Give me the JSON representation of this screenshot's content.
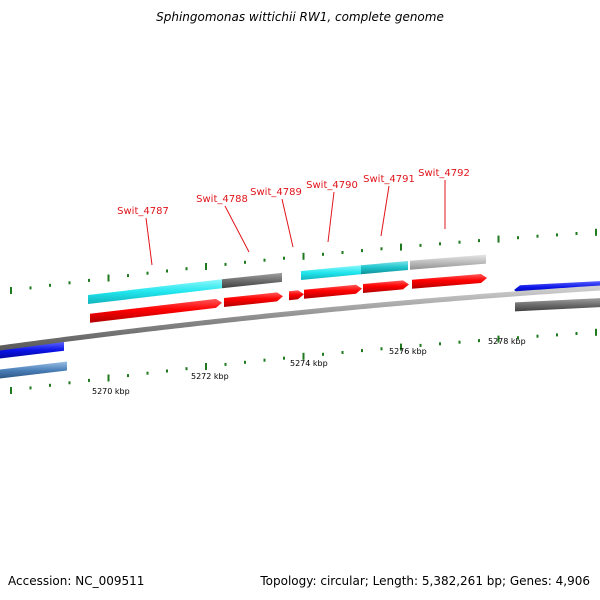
{
  "title": "Sphingomonas wittichii RW1, complete genome",
  "footer": {
    "accession": "Accession: NC_009511",
    "summary": "Topology: circular; Length: 5,382,261 bp; Genes: 4,906"
  },
  "gene_labels": [
    "Swit_4787",
    "Swit_4788",
    "Swit_4789",
    "Swit_4790",
    "Swit_4791",
    "Swit_4792"
  ],
  "kbp_labels": [
    "5270 kbp",
    "5272 kbp",
    "5274 kbp",
    "5276 kbp",
    "5278 kbp"
  ],
  "colors": {
    "cds": "#ff0000",
    "cyan": "#22e6ee",
    "teal": "#1fc4cc",
    "gray_dark": "#6e6e6e",
    "gray_light": "#bdbdbd",
    "blue": "#0a12e6",
    "steel_blue": "#4a7fb8",
    "backbone": "#8c8c8c",
    "ticks": "#1f7a1f",
    "label_red": "#e0141a"
  }
}
